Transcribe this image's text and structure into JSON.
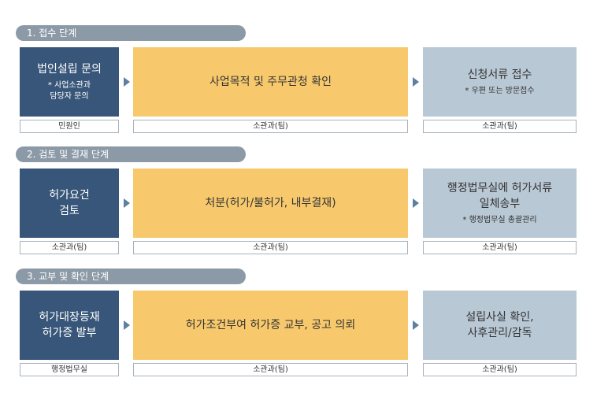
{
  "stages": [
    {
      "title": "1. 접수 단계",
      "boxes": [
        {
          "main": "법인설립 문의",
          "note": "* 사업소관과\n담당자 문의",
          "resp": "민원인"
        },
        {
          "main": "사업목적 및 주무관청 확인",
          "note": "",
          "resp": "소관과(팀)"
        },
        {
          "main": "신청서류 접수",
          "note": "* 우편 또는 방문접수",
          "resp": "소관과(팀)"
        }
      ]
    },
    {
      "title": "2. 검토 및 결재 단계",
      "boxes": [
        {
          "main": "허가요건\n검토",
          "note": "",
          "resp": "소관과(팀)"
        },
        {
          "main": "처분(허가/불허가, 내부결재)",
          "note": "",
          "resp": "소관과(팀)"
        },
        {
          "main": "행정법무실에 허가서류\n일체송부",
          "note": "* 행정법무실 총괄관리",
          "resp": "소관과(팀)"
        }
      ]
    },
    {
      "title": "3. 교부 및 확인 단계",
      "boxes": [
        {
          "main": "허가대장등재\n허가증 발부",
          "note": "",
          "resp": "행정법무실"
        },
        {
          "main": "허가조건부여 허가증 교부, 공고 의뢰",
          "note": "",
          "resp": "소관과(팀)"
        },
        {
          "main": "설립사실 확인,\n사후관리/감독",
          "note": "",
          "resp": "소관과(팀)"
        }
      ]
    }
  ],
  "colors": {
    "header": "#8c9aa7",
    "applicant_box": "#385679",
    "process_box": "#f7c96c",
    "result_box": "#b9c8d5",
    "arrow": "#5e7f9f"
  }
}
